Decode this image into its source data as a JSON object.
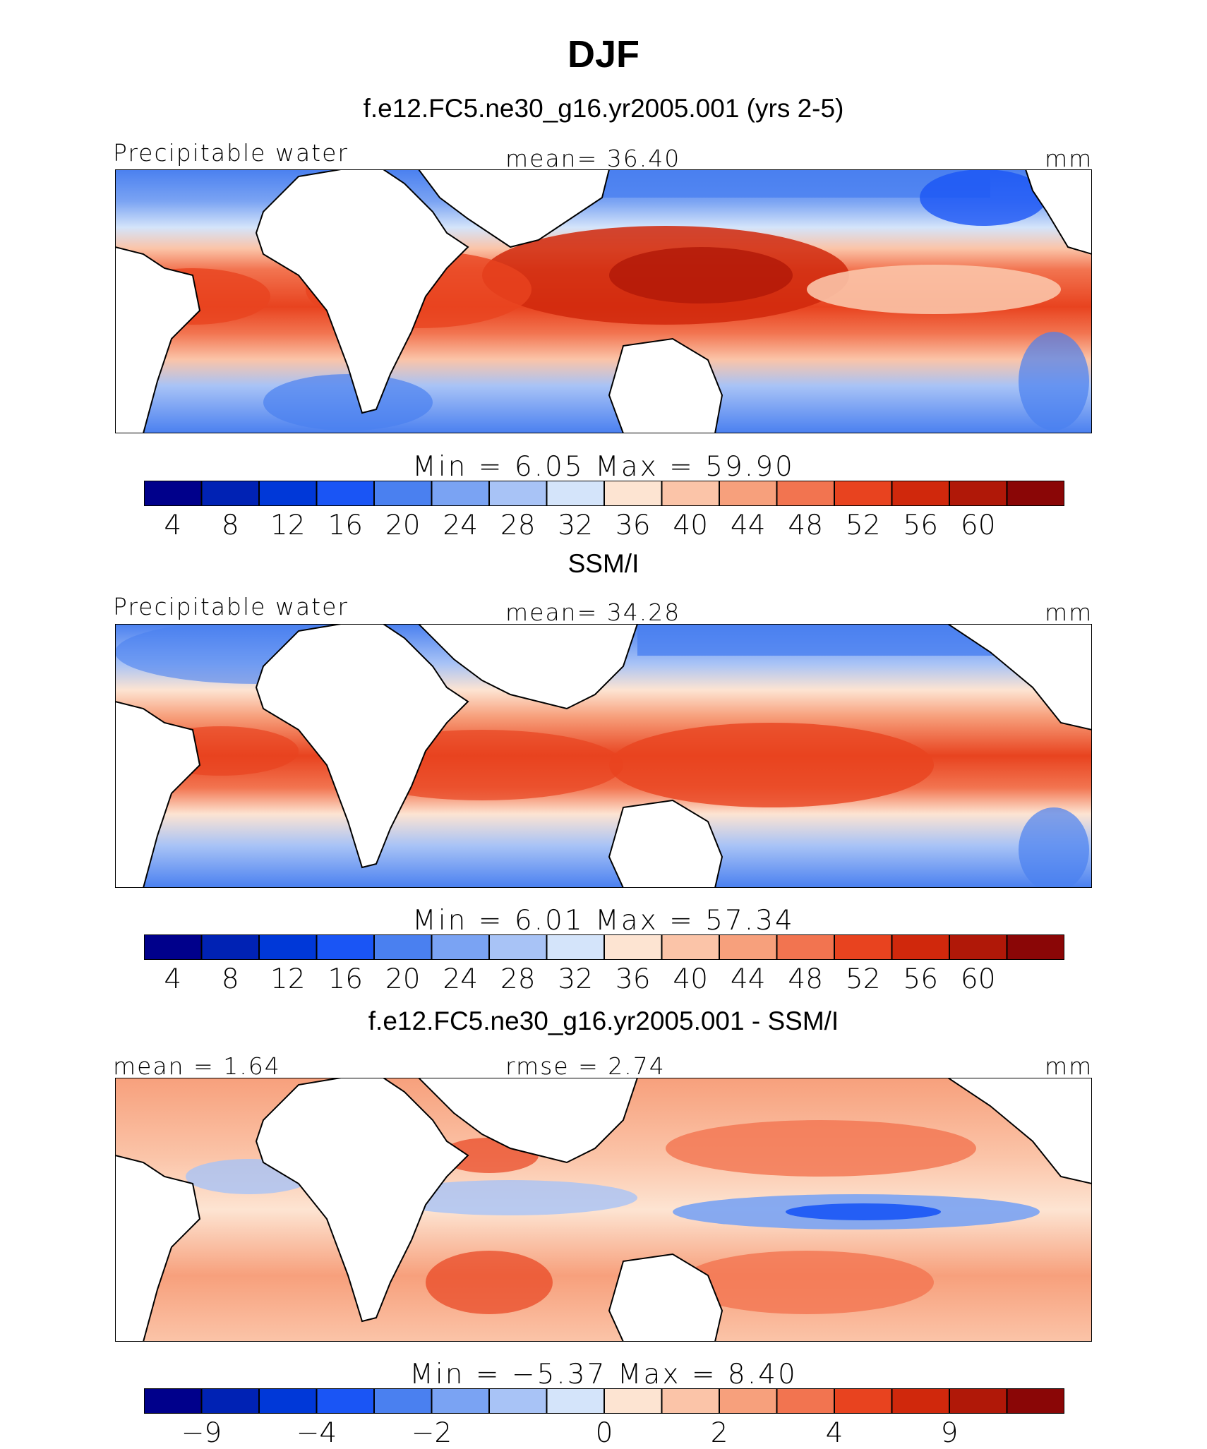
{
  "figure_title": "DJF",
  "panels": [
    {
      "title": "f.e12.FC5.ne30_g16.yr2005.001 (yrs 2-5)",
      "left_label": "Precipitable water",
      "center_label": "mean=   36.40",
      "units": "mm",
      "minmax": "Min  =     6.05  Max  =    59.90",
      "ticks": [
        "4",
        "8",
        "12",
        "16",
        "20",
        "24",
        "28",
        "32",
        "36",
        "40",
        "44",
        "48",
        "52",
        "56",
        "60"
      ]
    },
    {
      "title": "SSM/I",
      "left_label": "Precipitable water",
      "center_label": "mean=   34.28",
      "units": "mm",
      "minmax": "Min  =     6.01  Max  =    57.34",
      "ticks": [
        "4",
        "8",
        "12",
        "16",
        "20",
        "24",
        "28",
        "32",
        "36",
        "40",
        "44",
        "48",
        "52",
        "56",
        "60"
      ]
    },
    {
      "title": "f.e12.FC5.ne30_g16.yr2005.001 - SSM/I",
      "left_label": "mean  =    1.64",
      "center_label": "rmse  =    2.74",
      "units": "mm",
      "minmax": "Min  =   −5.37  Max  =      8.40",
      "ticks": [
        "−9",
        "−4",
        "−2",
        "0",
        "2",
        "4",
        "9"
      ]
    }
  ],
  "chart_data": [
    {
      "type": "heatmap",
      "title": "f.e12.FC5.ne30_g16.yr2005.001 (yrs 2-5)",
      "variable": "Precipitable water",
      "units": "mm",
      "mean": 36.4,
      "min": 6.05,
      "max": 59.9,
      "colorbar_levels": [
        4,
        8,
        12,
        16,
        20,
        24,
        28,
        32,
        36,
        40,
        44,
        48,
        52,
        56,
        60
      ],
      "colors": [
        "#00008b",
        "#0022b4",
        "#0038d8",
        "#1a55f5",
        "#4a80f0",
        "#7aa3f3",
        "#a8c3f6",
        "#d4e4fa",
        "#fde4d2",
        "#fbc4a8",
        "#f7a07c",
        "#f27450",
        "#e8431f",
        "#d0280c",
        "#b01808",
        "#8a0606"
      ]
    },
    {
      "type": "heatmap",
      "title": "SSM/I",
      "variable": "Precipitable water",
      "units": "mm",
      "mean": 34.28,
      "min": 6.01,
      "max": 57.34,
      "colorbar_levels": [
        4,
        8,
        12,
        16,
        20,
        24,
        28,
        32,
        36,
        40,
        44,
        48,
        52,
        56,
        60
      ],
      "colors": [
        "#00008b",
        "#0022b4",
        "#0038d8",
        "#1a55f5",
        "#4a80f0",
        "#7aa3f3",
        "#a8c3f6",
        "#d4e4fa",
        "#fde4d2",
        "#fbc4a8",
        "#f7a07c",
        "#f27450",
        "#e8431f",
        "#d0280c",
        "#b01808",
        "#8a0606"
      ]
    },
    {
      "type": "heatmap",
      "title": "f.e12.FC5.ne30_g16.yr2005.001 - SSM/I",
      "units": "mm",
      "mean": 1.64,
      "rmse": 2.74,
      "min": -5.37,
      "max": 8.4,
      "colorbar_levels": [
        -9,
        -4,
        -2,
        0,
        2,
        4,
        9
      ],
      "colors": [
        "#00008b",
        "#0022b4",
        "#0038d8",
        "#1a55f5",
        "#4a80f0",
        "#7aa3f3",
        "#a8c3f6",
        "#d4e4fa",
        "#fde4d2",
        "#fbc4a8",
        "#f7a07c",
        "#f27450",
        "#e8431f",
        "#d0280c",
        "#b01808",
        "#8a0606"
      ]
    }
  ]
}
